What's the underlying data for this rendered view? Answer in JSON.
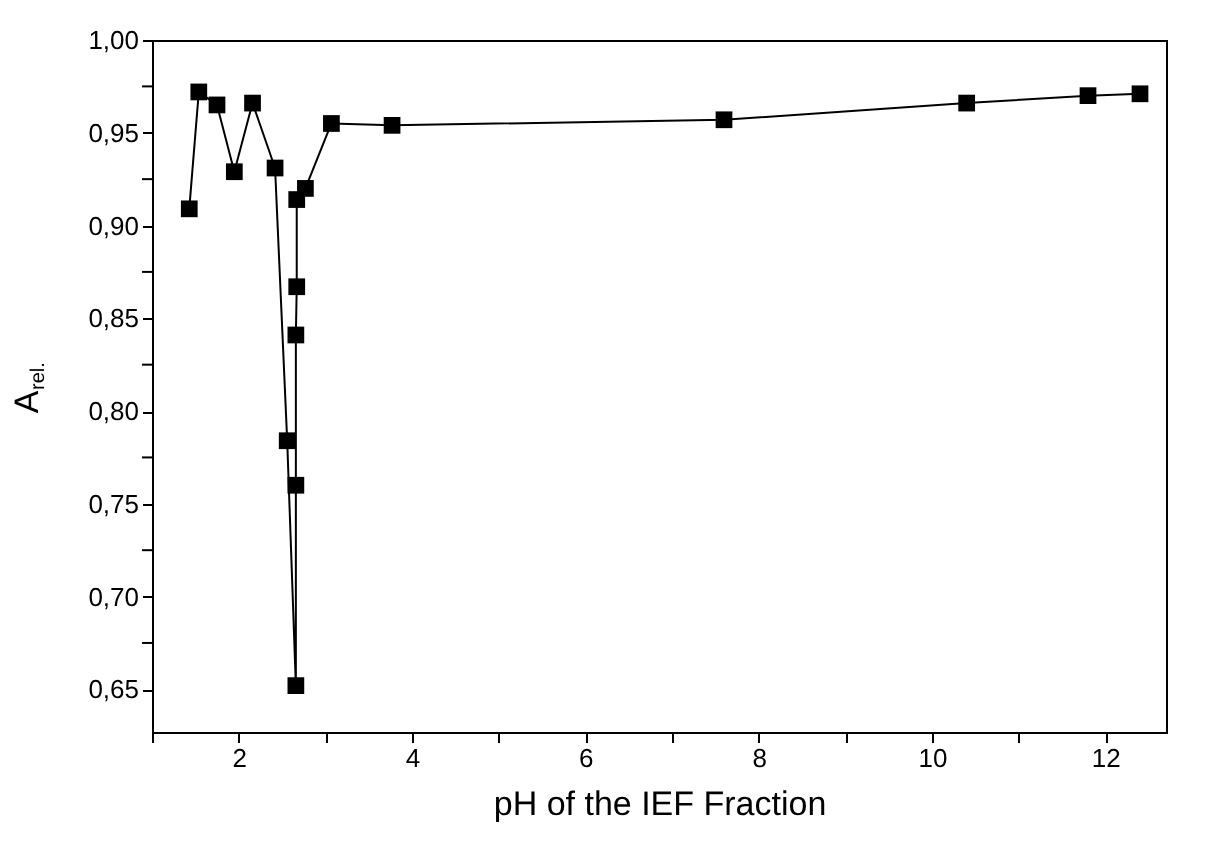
{
  "chart_data": {
    "type": "line",
    "xlabel": "pH of the IEF Fraction",
    "ylabel": "A$_{rel.}$",
    "x": [
      1.43,
      1.54,
      1.75,
      1.95,
      2.16,
      2.42,
      2.56,
      2.66,
      2.66,
      2.66,
      2.67,
      2.67,
      2.77,
      3.07,
      3.77,
      7.6,
      10.4,
      11.8,
      12.4
    ],
    "series": [
      {
        "color": "#000000",
        "values": [
          0.909,
          0.972,
          0.965,
          0.929,
          0.966,
          0.931,
          0.784,
          0.652,
          0.76,
          0.841,
          0.867,
          0.914,
          0.92,
          0.955,
          0.954,
          0.957,
          0.966,
          0.97,
          0.971
        ]
      }
    ],
    "marker": "square",
    "line_style": "solid",
    "grid": false,
    "xlim": [
      1,
      12.7
    ],
    "xticks": [
      {
        "value": 1,
        "label": null
      },
      2,
      {
        "value": 3,
        "label": null
      },
      4,
      {
        "value": 5,
        "label": null
      },
      6,
      {
        "value": 7,
        "label": null
      },
      8,
      {
        "value": 9,
        "label": null
      },
      10,
      {
        "value": 11,
        "label": null
      },
      12
    ],
    "ylim": [
      0.627,
      1.0
    ],
    "yticks": [
      {
        "value": 0.65,
        "label": "0,65"
      },
      {
        "value": 0.675,
        "label": null
      },
      {
        "value": 0.7,
        "label": "0,70"
      },
      {
        "value": 0.725,
        "label": null
      },
      {
        "value": 0.75,
        "label": "0,75"
      },
      {
        "value": 0.775,
        "label": null
      },
      {
        "value": 0.8,
        "label": "0,80"
      },
      {
        "value": 0.825,
        "label": null
      },
      {
        "value": 0.85,
        "label": "0,85"
      },
      {
        "value": 0.875,
        "label": null
      },
      {
        "value": 0.9,
        "label": "0,90"
      },
      {
        "value": 0.925,
        "label": null
      },
      {
        "value": 0.95,
        "label": "0,95"
      },
      {
        "value": 0.975,
        "label": null
      },
      {
        "value": 1.0,
        "label": "1,00"
      }
    ]
  }
}
